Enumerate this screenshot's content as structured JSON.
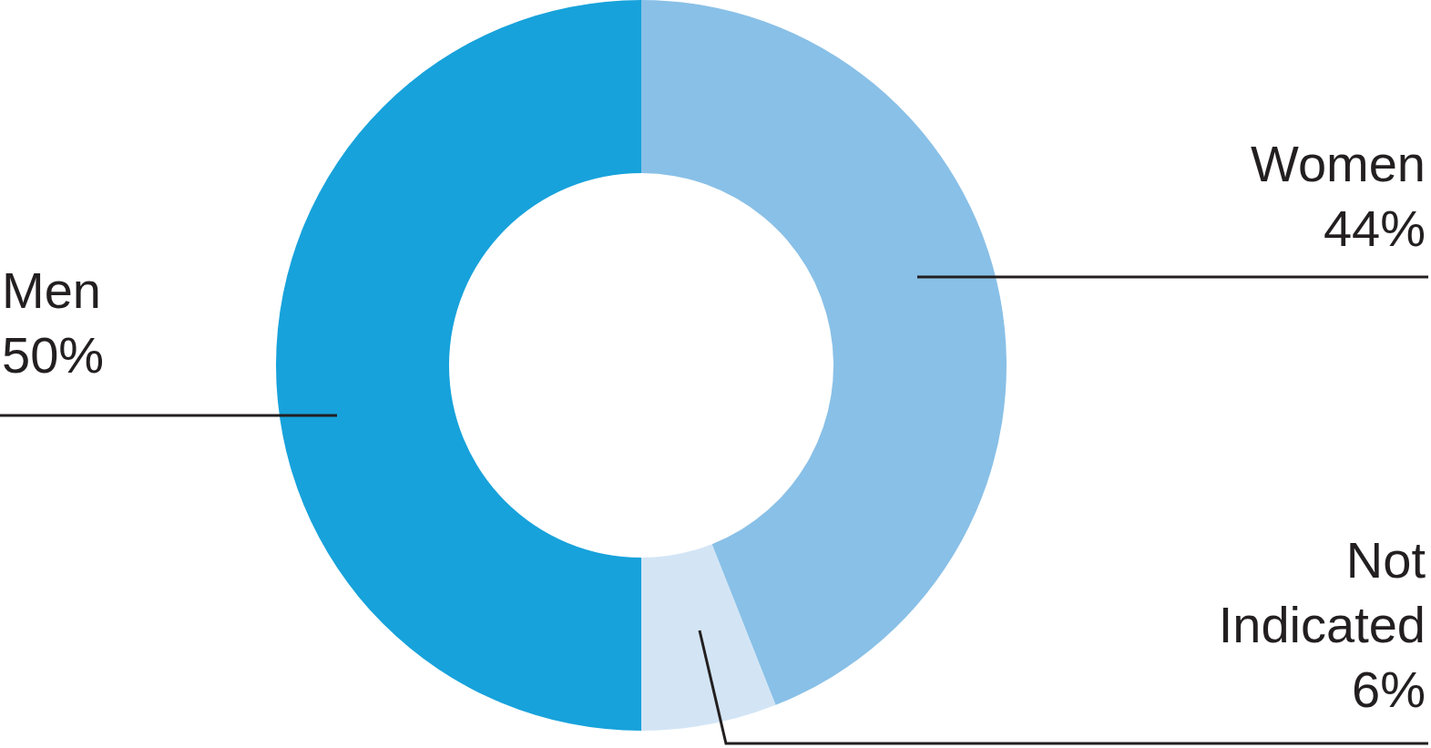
{
  "chart_data": {
    "type": "pie",
    "categories": [
      "Men",
      "Not Indicated",
      "Women"
    ],
    "values": [
      50,
      6,
      44
    ],
    "value_labels": [
      "50%",
      "6%",
      "44%"
    ],
    "colors": [
      "#17a2db",
      "#d3e5f5",
      "#89c0e7"
    ],
    "data_labels": true
  }
}
